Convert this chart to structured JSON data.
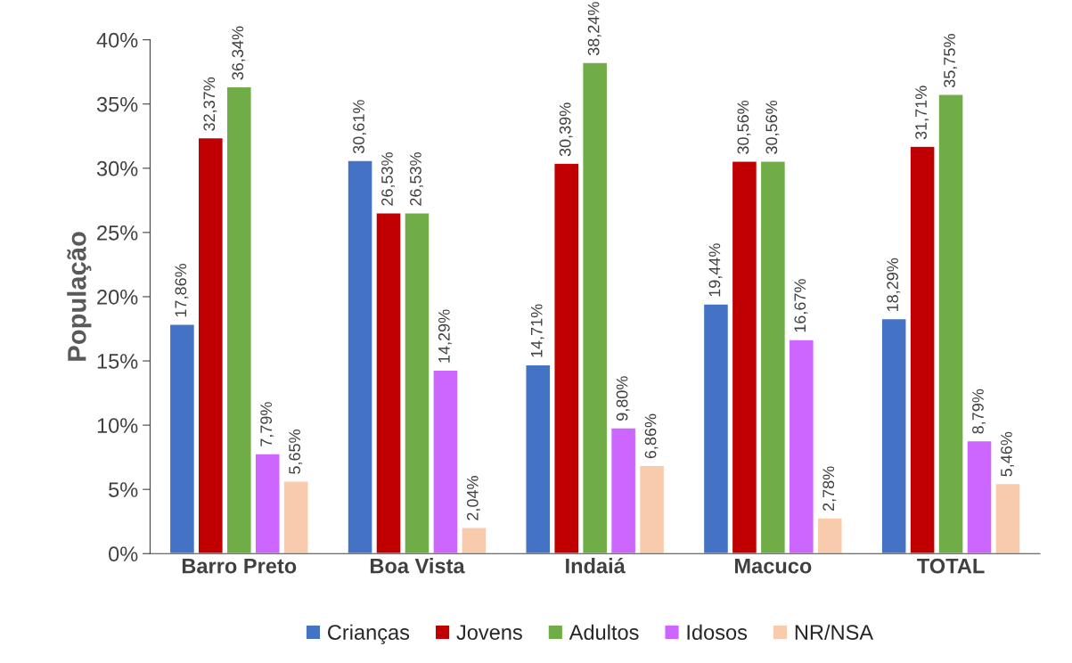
{
  "chart_data": {
    "type": "bar",
    "ylabel": "População",
    "categories": [
      "Barro Preto",
      "Boa Vista",
      "Indaiá",
      "Macuco",
      "TOTAL"
    ],
    "series": [
      {
        "name": "Crianças",
        "color": "#4472c4",
        "values": [
          17.86,
          30.61,
          14.71,
          19.44,
          18.29
        ],
        "value_labels": [
          "17,86%",
          "30,61%",
          "14,71%",
          "19,44%",
          "18,29%"
        ]
      },
      {
        "name": "Jovens",
        "color": "#c00000",
        "values": [
          32.37,
          26.53,
          30.39,
          30.56,
          31.71
        ],
        "value_labels": [
          "32,37%",
          "26,53%",
          "30,39%",
          "30,56%",
          "31,71%"
        ]
      },
      {
        "name": "Adultos",
        "color": "#70ad47",
        "values": [
          36.34,
          26.53,
          38.24,
          30.56,
          35.75
        ],
        "value_labels": [
          "36,34%",
          "26,53%",
          "38,24%",
          "30,56%",
          "35,75%"
        ]
      },
      {
        "name": "Idosos",
        "color": "#cc66ff",
        "values": [
          7.79,
          14.29,
          9.8,
          16.67,
          8.79
        ],
        "value_labels": [
          "7,79%",
          "14,29%",
          "9,80%",
          "16,67%",
          "8,79%"
        ]
      },
      {
        "name": "NR/NSA",
        "color": "#f8cbad",
        "values": [
          5.65,
          2.04,
          6.86,
          2.78,
          5.46
        ],
        "value_labels": [
          "5,65%",
          "2,04%",
          "6,86%",
          "2,78%",
          "5,46%"
        ]
      }
    ],
    "ylim": [
      0,
      40
    ],
    "yticks": [
      {
        "value": 0,
        "label": "0%"
      },
      {
        "value": 5,
        "label": "5%"
      },
      {
        "value": 10,
        "label": "10%"
      },
      {
        "value": 15,
        "label": "15%"
      },
      {
        "value": 20,
        "label": "20%"
      },
      {
        "value": 25,
        "label": "25%"
      },
      {
        "value": 30,
        "label": "30%"
      },
      {
        "value": 35,
        "label": "35%"
      },
      {
        "value": 40,
        "label": "40%"
      }
    ],
    "grid": false,
    "legend": "bottom"
  }
}
